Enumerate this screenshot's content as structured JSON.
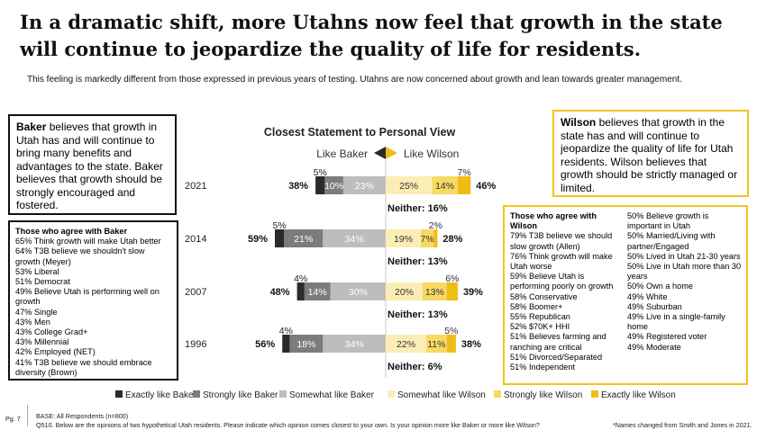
{
  "page": {
    "title": "In a dramatic shift, more Utahns now feel that growth in the state will continue to jeopardize the quality of life for residents.",
    "subtitle": "This feeling is markedly different from those expressed in previous years of testing. Utahns are now concerned about growth and lean towards greater management.",
    "page_number": "Pg. 7",
    "base_note": "BASE: All Respondents (n=800)",
    "question": "Q510. Below are the opinions of two hypothetical Utah residents. Please indicate which opinion comes closest to your own. Is your opinion more like Baker or more like Wilson?",
    "names_note": "*Names changed from Smith and Jones in 2021."
  },
  "baker_box": {
    "name": "Baker",
    "text": " believes that growth in Utah has and will continue to bring many benefits and advantages to the state. Baker believes that growth should be strongly encouraged and fostered."
  },
  "wilson_box": {
    "name": "Wilson",
    "text": " believes that growth in the state has and will continue to jeopardize the quality of life for Utah residents. Wilson believes that growth should be strictly managed or limited."
  },
  "baker_list": {
    "heading": "Those who agree with Baker",
    "items": [
      "65% Think growth will make Utah better",
      "64% T3B believe we shouldn't slow growth (Meyer)",
      "53% Liberal",
      "51% Democrat",
      "49% Believe Utah is performing well on growth",
      "47% Single",
      "43% Men",
      "43% College Grad+",
      "43% Millennial",
      "42% Employed (NET)",
      "41% T3B believe we should embrace diversity (Brown)"
    ]
  },
  "wilson_list": {
    "heading": "Those who agree with Wilson",
    "col1": [
      "79% T3B believe we should slow growth (Allen)",
      "76% Think growth will make Utah worse",
      "59% Believe Utah is performing poorly on growth",
      "58% Conservative",
      "58% Boomer+",
      "55% Republican",
      "52% $70K+ HHI",
      "51% Believes farming and ranching are critical",
      "51% Divorced/Separated",
      "51% Independent"
    ],
    "col2": [
      "50% Believe growth is important in Utah",
      "50% Married/Living with partner/Engaged",
      "50% Lived in Utah 21-30 years",
      "50% Live in Utah more than 30 years",
      "50% Own a home",
      "49% White",
      "49% Suburban",
      "49% Live in a single-family home",
      "49% Registered voter",
      "49% Moderate"
    ]
  },
  "chart_data": {
    "type": "bar",
    "orientation": "horizontal-diverging",
    "title": "Closest Statement to Personal View",
    "left_label": "Like Baker",
    "right_label": "Like Wilson",
    "categories": [
      "2021",
      "2014",
      "2007",
      "1996"
    ],
    "series": [
      {
        "name": "Exactly like Baker",
        "side": "left",
        "color": "#2b2b2b",
        "values": [
          5,
          5,
          4,
          4
        ],
        "labels": [
          "5%",
          "5%",
          "4%",
          "4%"
        ]
      },
      {
        "name": "Strongly like Baker",
        "side": "left",
        "color": "#7c7c7c",
        "values": [
          10,
          21,
          14,
          18
        ],
        "labels": [
          "10%",
          "21%",
          "14%",
          "18%"
        ]
      },
      {
        "name": "Somewhat like Baker",
        "side": "left",
        "color": "#bdbdbd",
        "values": [
          23,
          34,
          30,
          34
        ],
        "labels": [
          "23%",
          "34%",
          "30%",
          "34%"
        ]
      },
      {
        "name": "Somewhat like Wilson",
        "side": "right",
        "color": "#fbeeb5",
        "values": [
          25,
          19,
          20,
          22
        ],
        "labels": [
          "25%",
          "19%",
          "20%",
          "22%"
        ]
      },
      {
        "name": "Strongly like Wilson",
        "side": "right",
        "color": "#f7d964",
        "values": [
          14,
          7,
          13,
          11
        ],
        "labels": [
          "14%",
          "7%",
          "13%",
          "11%"
        ]
      },
      {
        "name": "Exactly like Wilson",
        "side": "right",
        "color": "#f0bc16",
        "values": [
          7,
          2,
          6,
          5
        ],
        "labels": [
          "7%",
          "2%",
          "6%",
          "5%"
        ]
      }
    ],
    "baker_totals": [
      "38%",
      "59%",
      "48%",
      "56%"
    ],
    "wilson_totals": [
      "46%",
      "28%",
      "39%",
      "38%"
    ],
    "neither": [
      "Neither: 16%",
      "Neither: 13%",
      "Neither: 13%",
      "Neither: 6%"
    ],
    "legend_position": "bottom",
    "grid": false
  }
}
